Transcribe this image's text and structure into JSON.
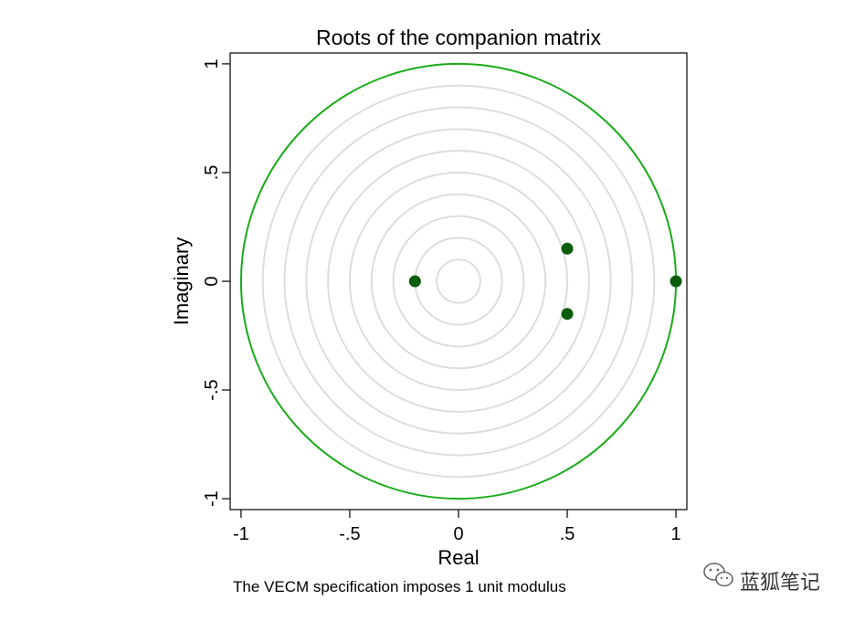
{
  "chart_data": {
    "type": "scatter",
    "title": "Roots of the companion matrix",
    "xlabel": "Real",
    "ylabel": "Imaginary",
    "xlim": [
      -1.05,
      1.05
    ],
    "ylim": [
      -1.05,
      1.05
    ],
    "x_ticks": [
      -1,
      -0.5,
      0,
      0.5,
      1
    ],
    "x_tick_labels": [
      "-1",
      "-.5",
      "0",
      ".5",
      "1"
    ],
    "y_ticks": [
      -1,
      -0.5,
      0,
      0.5,
      1
    ],
    "y_tick_labels": [
      "-1",
      "-.5",
      "0",
      ".5",
      "1"
    ],
    "reference_circles": [
      0.1,
      0.2,
      0.3,
      0.4,
      0.5,
      0.6,
      0.7,
      0.8,
      0.9
    ],
    "unit_circle_radius": 1,
    "points": [
      {
        "x": -0.2,
        "y": 0.0
      },
      {
        "x": 0.5,
        "y": 0.15
      },
      {
        "x": 0.5,
        "y": -0.15
      },
      {
        "x": 1.0,
        "y": 0.0
      }
    ],
    "note": "The VECM specification imposes 1 unit modulus",
    "colors": {
      "unit_circle": "#1aab1a",
      "reference_circles": "#dddddd",
      "points": "#0b5c0b"
    }
  },
  "watermark": {
    "icon": "wechat-icon",
    "text": "蓝狐笔记"
  }
}
